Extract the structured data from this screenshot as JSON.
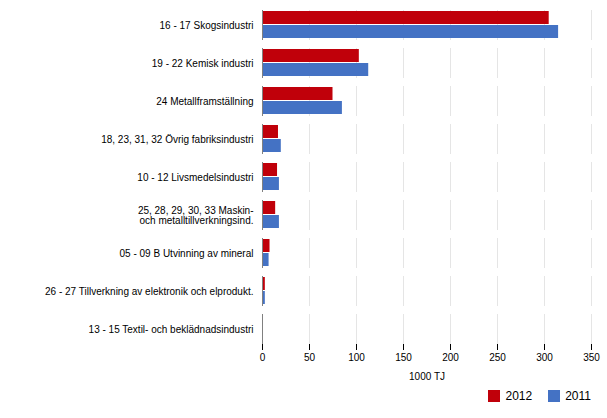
{
  "chart_data": {
    "type": "bar",
    "orientation": "horizontal",
    "categories": [
      "16 - 17 Skogsindustri",
      "19 - 22 Kemisk industri",
      "24 Metallframställning",
      "18, 23, 31, 32 Övrig fabriksindustri",
      "10 - 12 Livsmedelsindustri",
      "25, 28, 29, 30, 33 Maskin-\noch metalltillverkningsind.",
      "05 - 09 B Utvinning av mineral",
      "26 - 27 Tillverkning av elektronik och elprodukt.",
      "13 - 15 Textil- och beklädnadsindustri"
    ],
    "series": [
      {
        "name": "2012",
        "color": "#c0000a",
        "values": [
          305,
          103,
          75,
          17,
          16,
          14,
          8,
          3,
          1
        ]
      },
      {
        "name": "2011",
        "color": "#4472c4",
        "values": [
          315,
          113,
          85,
          20,
          18,
          18,
          7,
          3,
          1
        ]
      }
    ],
    "xlabel": "1000 TJ",
    "xlim": [
      0,
      350
    ],
    "xticks": [
      0,
      50,
      100,
      150,
      200,
      250,
      300,
      350
    ],
    "grid": true,
    "legend": "lower right"
  }
}
